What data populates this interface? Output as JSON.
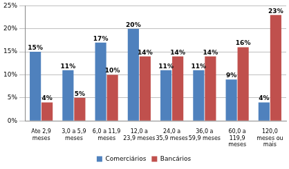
{
  "chart_data": {
    "type": "bar",
    "categories": [
      "Ate 2,9 meses",
      "3,0 a 5,9 meses",
      "6,0 a 11,9 meses",
      "12,0 a 23,9 meses",
      "24,0 a 35,9 meses",
      "36,0 a 59,9 meses",
      "60,0 a 119,9 meses",
      "120,0 meses ou mais"
    ],
    "series": [
      {
        "name": "Comerciários",
        "color": "#4f81bd",
        "values": [
          15,
          11,
          17,
          20,
          11,
          11,
          9,
          4
        ],
        "value_labels": [
          "15%",
          "11%",
          "17%",
          "20%",
          "11%",
          "11%",
          "9%",
          "4%"
        ]
      },
      {
        "name": "Bancários",
        "color": "#c0504d",
        "values": [
          4,
          5,
          10,
          14,
          14,
          14,
          16,
          23
        ],
        "value_labels": [
          "4%",
          "5%",
          "10%",
          "14%",
          "14%",
          "14%",
          "16%",
          "23%"
        ]
      }
    ],
    "ylim": [
      0,
      25
    ],
    "yticks": [
      {
        "value": 0,
        "label": "0%"
      },
      {
        "value": 5,
        "label": "5%"
      },
      {
        "value": 10,
        "label": "10%"
      },
      {
        "value": 15,
        "label": "15%"
      },
      {
        "value": 20,
        "label": "20%"
      },
      {
        "value": 25,
        "label": "25%"
      }
    ],
    "grid": true,
    "legend": "bottom",
    "data_labels": true
  }
}
